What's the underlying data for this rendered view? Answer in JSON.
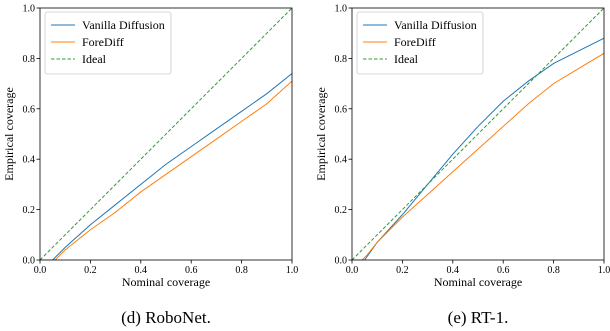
{
  "chart_data": [
    {
      "type": "line",
      "caption": "(d) RoboNet.",
      "xlabel": "Nominal coverage",
      "ylabel": "Empirical coverage",
      "xlim": [
        0,
        1
      ],
      "ylim": [
        0,
        1
      ],
      "xticks": [
        "0.0",
        "0.2",
        "0.4",
        "0.6",
        "0.8",
        "1.0"
      ],
      "yticks": [
        "0.0",
        "0.2",
        "0.4",
        "0.6",
        "0.8",
        "1.0"
      ],
      "legend": "upper-left",
      "grid": false,
      "series": [
        {
          "name": "Vanilla Diffusion",
          "color": "#1f77b4",
          "dash": "solid",
          "x": [
            0.0,
            0.05,
            0.1,
            0.2,
            0.3,
            0.4,
            0.5,
            0.6,
            0.7,
            0.8,
            0.9,
            1.0
          ],
          "y": [
            0.0,
            0.0,
            0.05,
            0.14,
            0.22,
            0.3,
            0.38,
            0.45,
            0.52,
            0.59,
            0.66,
            0.74
          ]
        },
        {
          "name": "ForeDiff",
          "color": "#ff7f0e",
          "dash": "solid",
          "x": [
            0.0,
            0.06,
            0.1,
            0.2,
            0.3,
            0.4,
            0.5,
            0.6,
            0.7,
            0.8,
            0.9,
            1.0
          ],
          "y": [
            0.0,
            0.0,
            0.04,
            0.12,
            0.19,
            0.27,
            0.34,
            0.41,
            0.48,
            0.55,
            0.62,
            0.71
          ]
        },
        {
          "name": "Ideal",
          "color": "#2ca02c",
          "dash": "dashed",
          "x": [
            0.0,
            1.0
          ],
          "y": [
            0.0,
            1.0
          ]
        }
      ]
    },
    {
      "type": "line",
      "caption": "(e) RT-1.",
      "xlabel": "Nominal coverage",
      "ylabel": "Empirical coverage",
      "xlim": [
        0,
        1
      ],
      "ylim": [
        0,
        1
      ],
      "xticks": [
        "0.0",
        "0.2",
        "0.4",
        "0.6",
        "0.8",
        "1.0"
      ],
      "yticks": [
        "0.0",
        "0.2",
        "0.4",
        "0.6",
        "0.8",
        "1.0"
      ],
      "legend": "upper-left",
      "grid": false,
      "series": [
        {
          "name": "Vanilla Diffusion",
          "color": "#1f77b4",
          "dash": "solid",
          "x": [
            0.0,
            0.05,
            0.1,
            0.2,
            0.3,
            0.4,
            0.5,
            0.6,
            0.7,
            0.8,
            0.9,
            1.0
          ],
          "y": [
            0.0,
            0.0,
            0.07,
            0.18,
            0.3,
            0.42,
            0.53,
            0.63,
            0.71,
            0.78,
            0.83,
            0.88
          ]
        },
        {
          "name": "ForeDiff",
          "color": "#ff7f0e",
          "dash": "solid",
          "x": [
            0.0,
            0.04,
            0.06,
            0.1,
            0.2,
            0.3,
            0.4,
            0.5,
            0.6,
            0.7,
            0.8,
            0.9,
            1.0
          ],
          "y": [
            0.0,
            0.0,
            0.02,
            0.07,
            0.17,
            0.26,
            0.35,
            0.44,
            0.53,
            0.62,
            0.7,
            0.76,
            0.82
          ]
        },
        {
          "name": "Ideal",
          "color": "#2ca02c",
          "dash": "dashed",
          "x": [
            0.0,
            1.0
          ],
          "y": [
            0.0,
            1.0
          ]
        }
      ]
    }
  ]
}
